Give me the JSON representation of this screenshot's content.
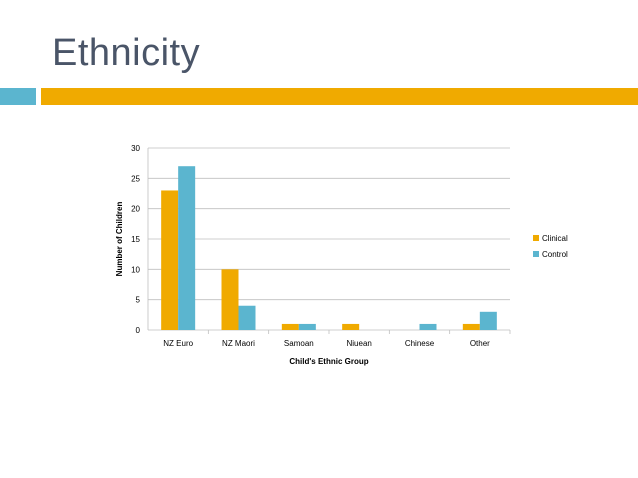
{
  "slide": {
    "title": "Ethnicity"
  },
  "colors": {
    "accent_blue": "#5bb5cf",
    "accent_gold": "#f0aa00",
    "clinical": "#f0aa00",
    "control": "#5bb5cf"
  },
  "chart_data": {
    "type": "bar",
    "title": "",
    "xlabel": "Child's Ethnic Group",
    "ylabel": "Number of Children",
    "categories": [
      "NZ Euro",
      "NZ Maori",
      "Samoan",
      "Niuean",
      "Chinese",
      "Other"
    ],
    "series": [
      {
        "name": "Clinical",
        "color": "#f0aa00",
        "values": [
          23,
          10,
          1,
          1,
          0,
          1
        ]
      },
      {
        "name": "Control",
        "color": "#5bb5cf",
        "values": [
          27,
          4,
          1,
          0,
          1,
          3
        ]
      }
    ],
    "ylim": [
      0,
      30
    ],
    "yticks": [
      0,
      5,
      10,
      15,
      20,
      25,
      30
    ],
    "grid": true,
    "legend": "right"
  }
}
